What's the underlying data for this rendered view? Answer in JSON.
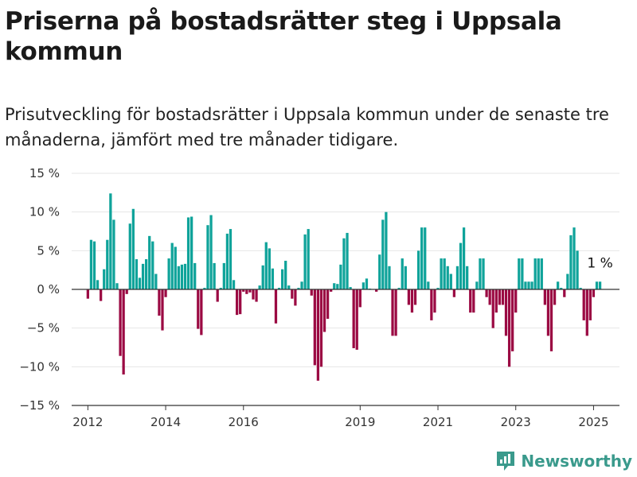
{
  "header": {
    "title": "Priserna på bostadsrätter steg i Uppsala kommun",
    "subtitle": "Prisutveckling för bostadsrätter i Uppsala kommun under de senaste tre månaderna, jämfört med tre månader tidigare."
  },
  "brand": {
    "logo_text": "Newsworthy",
    "color": "#3a9a8c"
  },
  "colors": {
    "positive": "#0fa39a",
    "negative": "#9b0a43",
    "grid": "#e6e6e6",
    "axis": "#333333"
  },
  "chart_data": {
    "type": "bar",
    "series_note": "three-month price change per month",
    "start": "2012-01",
    "end": "2025-03",
    "xlim": [
      "2011-08",
      "2025-09"
    ],
    "ylim": [
      -15,
      15
    ],
    "yticks": [
      -15,
      -10,
      -5,
      0,
      5,
      10,
      15
    ],
    "ytick_labels": [
      "−15 %",
      "−10 %",
      "−5 %",
      "0 %",
      "5 %",
      "10 %",
      "15 %"
    ],
    "xtick_labels": [
      "2012",
      "2014",
      "2016",
      "2019",
      "2021",
      "2023",
      "2025"
    ],
    "xtick_years": [
      2012,
      2014,
      2016,
      2019,
      2021,
      2023,
      2025
    ],
    "grid": true,
    "annotation": {
      "text": "1 %",
      "date": "2025-03",
      "value": 1
    },
    "values": [
      -1.2,
      6.4,
      6.2,
      1.2,
      -1.5,
      2.6,
      6.4,
      12.4,
      9.0,
      0.8,
      -8.6,
      -11.0,
      -0.6,
      8.5,
      10.4,
      3.9,
      1.5,
      3.3,
      3.9,
      6.9,
      6.2,
      2.0,
      -3.4,
      -5.3,
      -1.0,
      4.0,
      6.0,
      5.5,
      3.0,
      3.2,
      3.3,
      9.3,
      9.4,
      3.4,
      -5.1,
      -5.9,
      0.2,
      8.3,
      9.6,
      3.4,
      -1.6,
      0.2,
      3.4,
      7.2,
      7.8,
      1.2,
      -3.3,
      -3.2,
      -0.3,
      -0.6,
      -0.4,
      -1.3,
      -1.6,
      0.5,
      3.1,
      6.1,
      5.3,
      2.7,
      -4.4,
      0.2,
      2.6,
      3.7,
      0.5,
      -1.2,
      -2.1,
      0.2,
      1.0,
      7.1,
      7.8,
      -0.8,
      -9.8,
      -11.8,
      -10.0,
      -5.5,
      -3.8,
      -0.3,
      0.8,
      0.7,
      3.2,
      6.6,
      7.3,
      0.3,
      -7.6,
      -7.8,
      -2.3,
      0.9,
      1.4,
      0.1,
      0.0,
      -0.3,
      4.5,
      9.0,
      10.0,
      3.0,
      -6.0,
      -6.0,
      0.2,
      4.0,
      3.0,
      -2.0,
      -3.0,
      -2.0,
      5.0,
      8.0,
      8.0,
      1.0,
      -4.0,
      -3.0,
      0.2,
      4.0,
      4.0,
      3.0,
      2.0,
      -1.0,
      3.0,
      6.0,
      8.0,
      3.0,
      -3.0,
      -3.0,
      1.0,
      4.0,
      4.0,
      -1.0,
      -2.0,
      -5.0,
      -3.0,
      -2.0,
      -2.0,
      -6.0,
      -10.0,
      -8.0,
      -3.0,
      4.0,
      4.0,
      1.0,
      1.0,
      1.0,
      4.0,
      4.0,
      4.0,
      -2.0,
      -6.0,
      -8.0,
      -2.0,
      1.0,
      0.2,
      -1.0,
      2.0,
      7.0,
      8.0,
      5.0,
      0.2,
      -4.0,
      -6.0,
      -4.0,
      -1.0,
      1.0,
      1.0
    ]
  }
}
